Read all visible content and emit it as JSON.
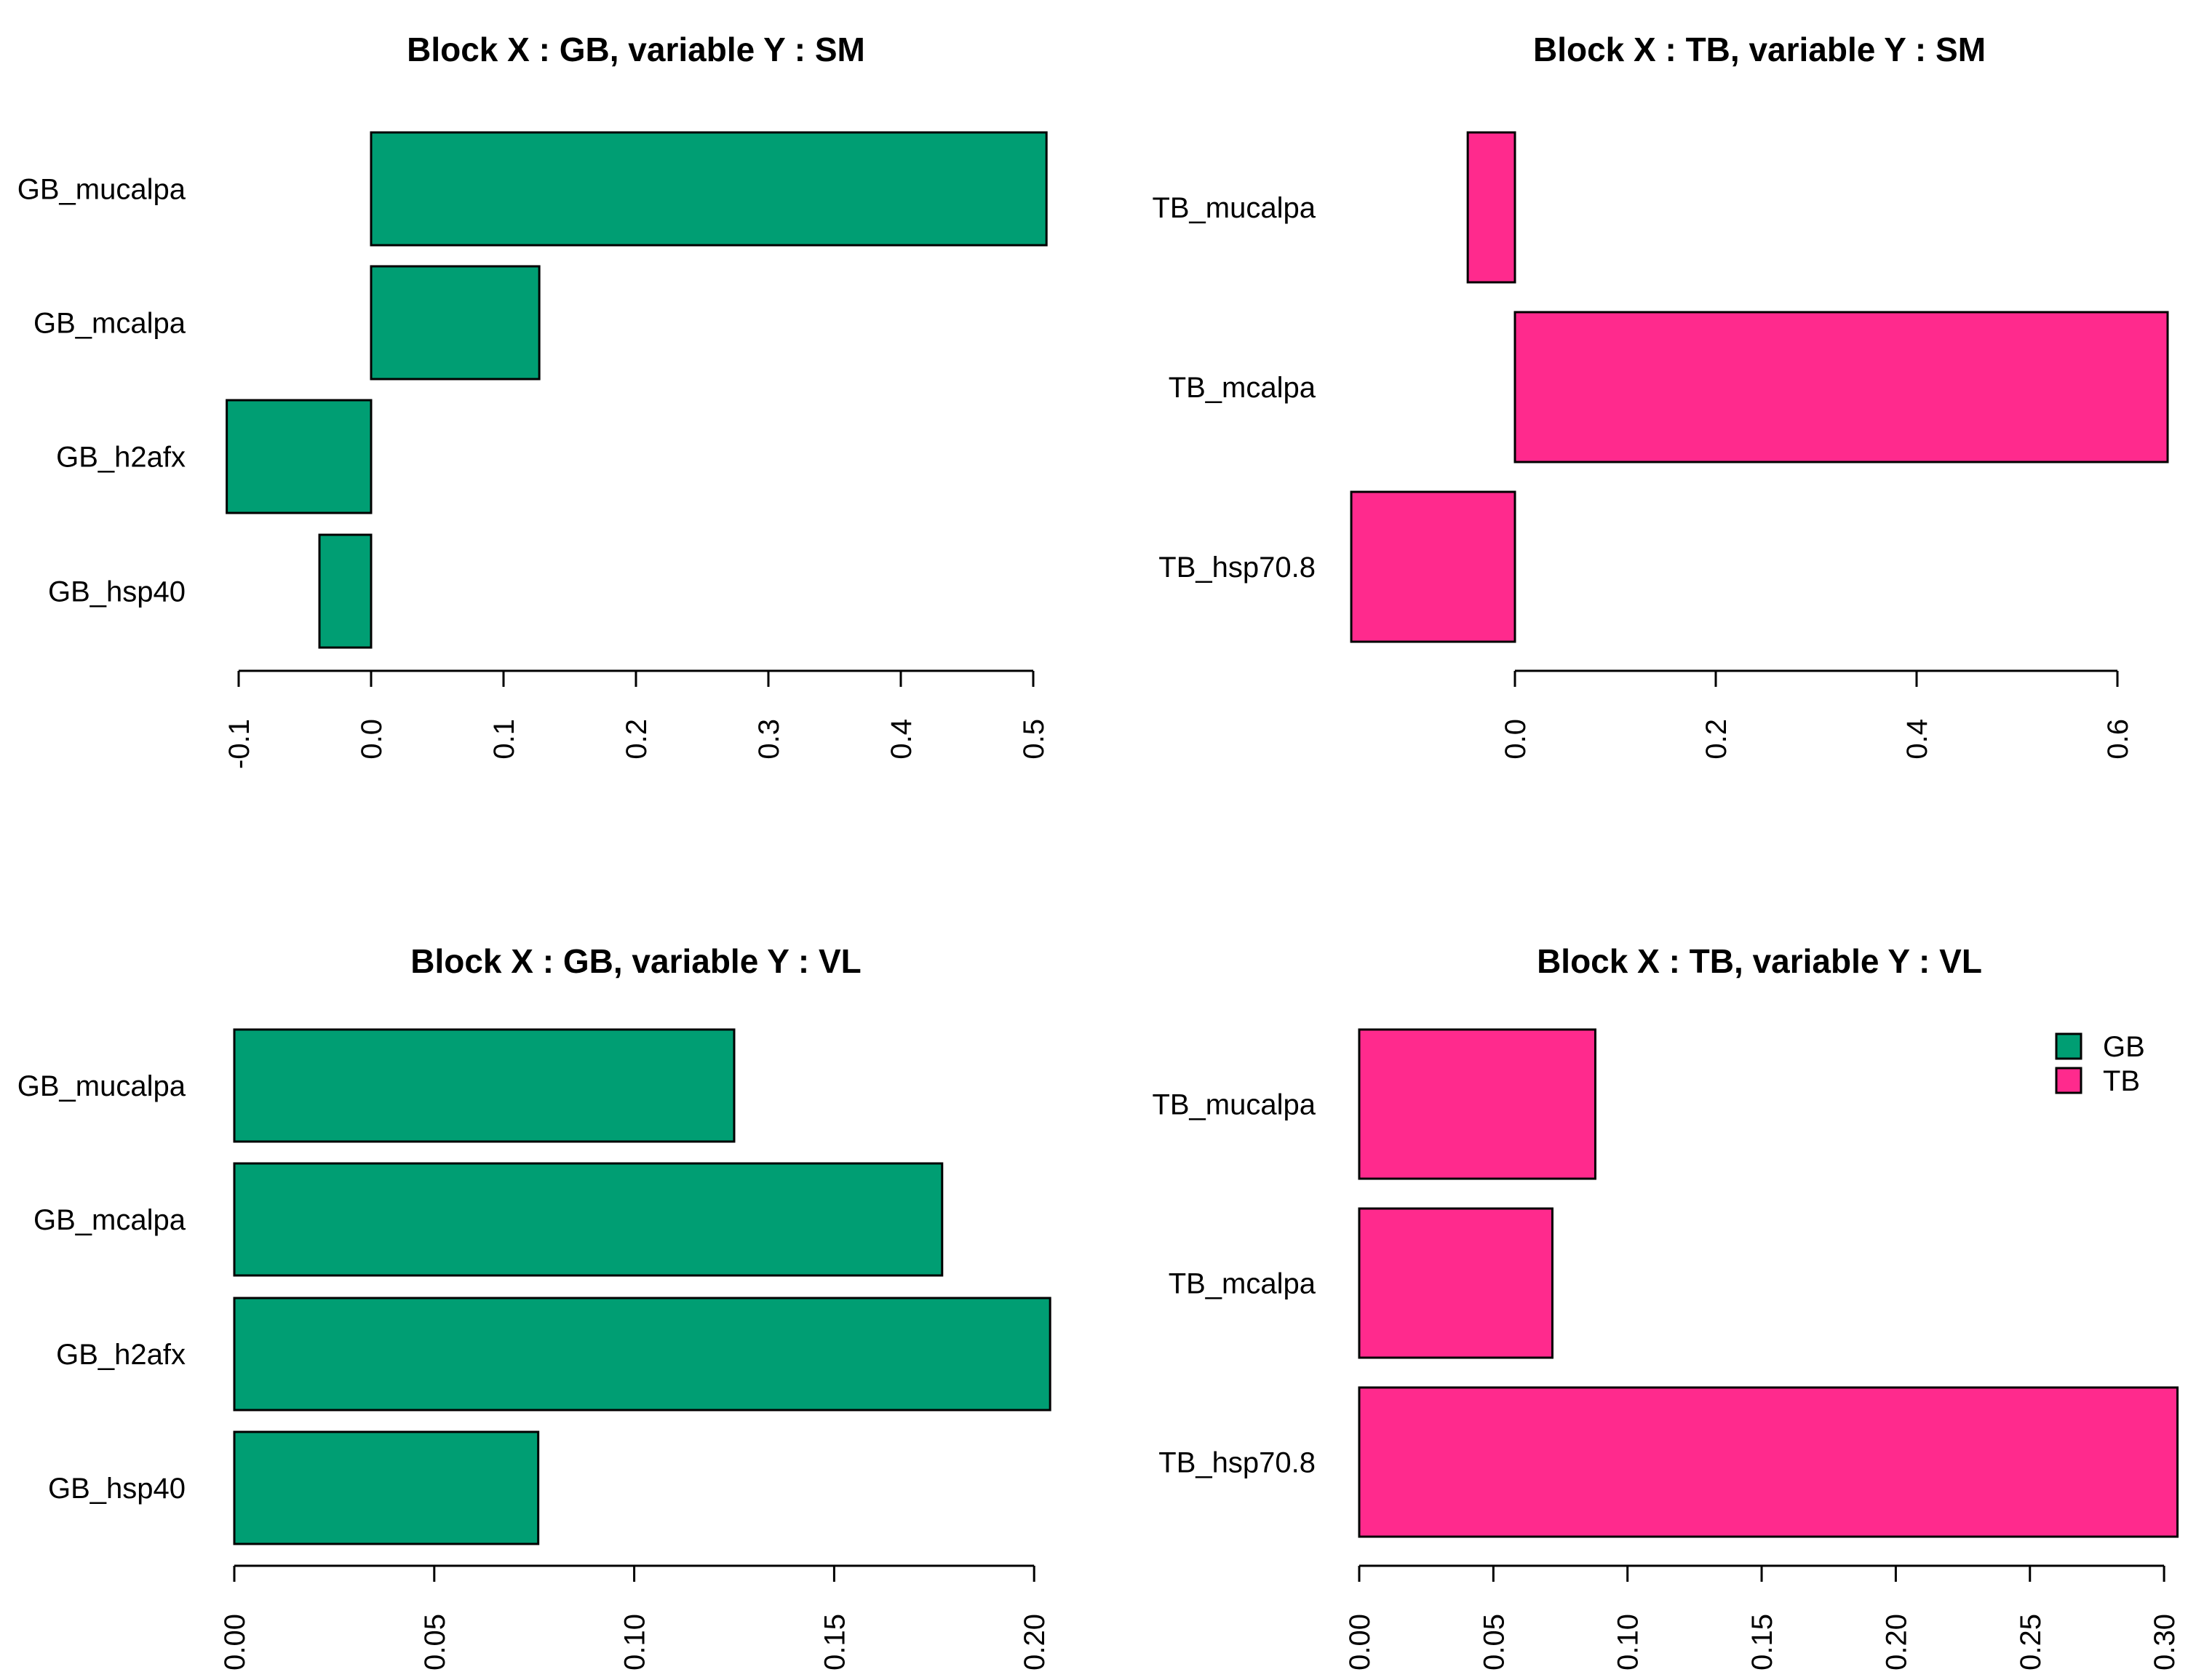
{
  "figure_title": "",
  "background": "#FFFFFF",
  "colors": {
    "GB": "#009E73",
    "TB": "#FF2A8D",
    "bar_border": "#000000",
    "axis": "#000000",
    "text": "#000000"
  },
  "legend": {
    "position": "top-right-of-bottom-right-panel",
    "entries": [
      {
        "label": "GB",
        "color_key": "GB"
      },
      {
        "label": "TB",
        "color_key": "TB"
      }
    ]
  },
  "chart_data": [
    {
      "id": "top-left",
      "type": "bar",
      "orientation": "horizontal",
      "title": "Block X : GB, variable Y : SM",
      "series_color_key": "GB",
      "categories": [
        "GB_mucalpa",
        "GB_mcalpa",
        "GB_h2afx",
        "GB_hsp40"
      ],
      "values": [
        0.51,
        0.127,
        -0.109,
        -0.039
      ],
      "ticks": [
        -0.1,
        0.0,
        0.1,
        0.2,
        0.3,
        0.4,
        0.5
      ],
      "tick_labels": [
        "-0.1",
        "0.0",
        "0.1",
        "0.2",
        "0.3",
        "0.4",
        "0.5"
      ],
      "xlim": [
        -0.1,
        0.51
      ],
      "grid": false,
      "tick_label_rotation": -90
    },
    {
      "id": "top-right",
      "type": "bar",
      "orientation": "horizontal",
      "title": "Block X : TB, variable Y : SM",
      "series_color_key": "TB",
      "categories": [
        "TB_mucalpa",
        "TB_mcalpa",
        "TB_hsp70.8"
      ],
      "values": [
        -0.047,
        0.65,
        -0.163
      ],
      "ticks": [
        0.0,
        0.2,
        0.4,
        0.6
      ],
      "tick_labels": [
        "0.0",
        "0.2",
        "0.4",
        "0.6"
      ],
      "xlim": [
        -0.163,
        0.65
      ],
      "grid": false,
      "tick_label_rotation": -90
    },
    {
      "id": "bottom-left",
      "type": "bar",
      "orientation": "horizontal",
      "title": "Block X : GB, variable Y : VL",
      "series_color_key": "GB",
      "categories": [
        "GB_mucalpa",
        "GB_mcalpa",
        "GB_h2afx",
        "GB_hsp40"
      ],
      "values": [
        0.125,
        0.177,
        0.204,
        0.076
      ],
      "ticks": [
        0.0,
        0.05,
        0.1,
        0.15,
        0.2
      ],
      "tick_labels": [
        "0.00",
        "0.05",
        "0.10",
        "0.15",
        "0.20"
      ],
      "xlim": [
        0,
        0.204
      ],
      "grid": false,
      "tick_label_rotation": -90
    },
    {
      "id": "bottom-right",
      "type": "bar",
      "orientation": "horizontal",
      "title": "Block X : TB, variable Y : VL",
      "series_color_key": "TB",
      "categories": [
        "TB_mucalpa",
        "TB_mcalpa",
        "TB_hsp70.8"
      ],
      "values": [
        0.088,
        0.072,
        0.305
      ],
      "ticks": [
        0.0,
        0.05,
        0.1,
        0.15,
        0.2,
        0.25,
        0.3
      ],
      "tick_labels": [
        "0.00",
        "0.05",
        "0.10",
        "0.15",
        "0.20",
        "0.25",
        "0.30"
      ],
      "xlim": [
        0,
        0.305
      ],
      "grid": false,
      "tick_label_rotation": -90,
      "has_legend": true
    }
  ]
}
